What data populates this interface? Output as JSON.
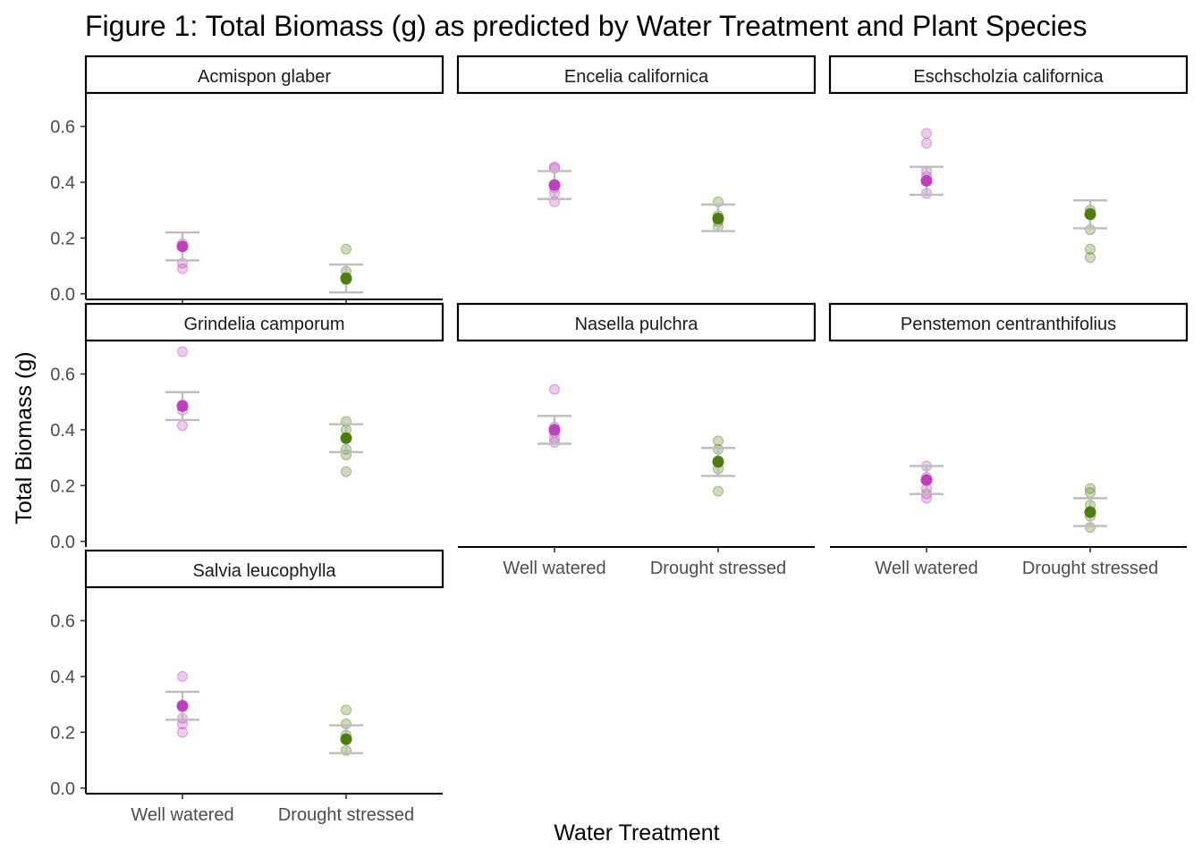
{
  "chart_data": {
    "type": "scatter",
    "title": "Figure 1: Total Biomass (g) as predicted by Water Treatment and Plant Species",
    "xlabel": "Water Treatment",
    "ylabel": "Total Biomass (g)",
    "categories": [
      "Well watered",
      "Drought stressed"
    ],
    "y_ticks": [
      "0.0",
      "0.2",
      "0.4",
      "0.6"
    ],
    "ylim": [
      -0.02,
      0.72
    ],
    "legend": "none",
    "colors": {
      "Well watered": "#bf40bf",
      "Drought stressed": "#4d7c0f",
      "error_bar": "#bdbdbd"
    },
    "panels": [
      {
        "species": "Acmispon glaber",
        "ww": {
          "points": [
            0.09,
            0.11,
            0.17,
            0.18
          ],
          "mean": 0.17,
          "ci": [
            0.12,
            0.22
          ]
        },
        "ds": {
          "points": [
            0.05,
            0.06,
            0.08,
            0.16
          ],
          "mean": 0.055,
          "ci": [
            0.005,
            0.105
          ]
        }
      },
      {
        "species": "Encelia californica",
        "ww": {
          "points": [
            0.33,
            0.36,
            0.38,
            0.45,
            0.455
          ],
          "mean": 0.39,
          "ci": [
            0.34,
            0.44
          ]
        },
        "ds": {
          "points": [
            0.24,
            0.26,
            0.28,
            0.33
          ],
          "mean": 0.27,
          "ci": [
            0.225,
            0.32
          ]
        }
      },
      {
        "species": "Eschscholzia californica",
        "ww": {
          "points": [
            0.36,
            0.42,
            0.44,
            0.54,
            0.575
          ],
          "mean": 0.405,
          "ci": [
            0.355,
            0.455
          ]
        },
        "ds": {
          "points": [
            0.13,
            0.16,
            0.23,
            0.29,
            0.3
          ],
          "mean": 0.285,
          "ci": [
            0.235,
            0.335
          ]
        }
      },
      {
        "species": "Grindelia camporum",
        "ww": {
          "points": [
            0.415,
            0.47,
            0.49,
            0.68
          ],
          "mean": 0.485,
          "ci": [
            0.435,
            0.535
          ]
        },
        "ds": {
          "points": [
            0.25,
            0.31,
            0.33,
            0.4,
            0.43
          ],
          "mean": 0.37,
          "ci": [
            0.32,
            0.42
          ]
        }
      },
      {
        "species": "Nasella pulchra",
        "ww": {
          "points": [
            0.355,
            0.37,
            0.39,
            0.41,
            0.545
          ],
          "mean": 0.4,
          "ci": [
            0.35,
            0.45
          ]
        },
        "ds": {
          "points": [
            0.18,
            0.26,
            0.29,
            0.33,
            0.36
          ],
          "mean": 0.285,
          "ci": [
            0.235,
            0.335
          ]
        }
      },
      {
        "species": "Penstemon centranthifolius",
        "ww": {
          "points": [
            0.155,
            0.17,
            0.19,
            0.23,
            0.27
          ],
          "mean": 0.22,
          "ci": [
            0.17,
            0.27
          ]
        },
        "ds": {
          "points": [
            0.05,
            0.09,
            0.13,
            0.175,
            0.19
          ],
          "mean": 0.105,
          "ci": [
            0.055,
            0.155
          ]
        }
      },
      {
        "species": "Salvia leucophylla",
        "ww": {
          "points": [
            0.2,
            0.23,
            0.25,
            0.29,
            0.4
          ],
          "mean": 0.295,
          "ci": [
            0.245,
            0.345
          ]
        },
        "ds": {
          "points": [
            0.135,
            0.175,
            0.19,
            0.23,
            0.28
          ],
          "mean": 0.175,
          "ci": [
            0.125,
            0.225
          ]
        }
      }
    ]
  }
}
